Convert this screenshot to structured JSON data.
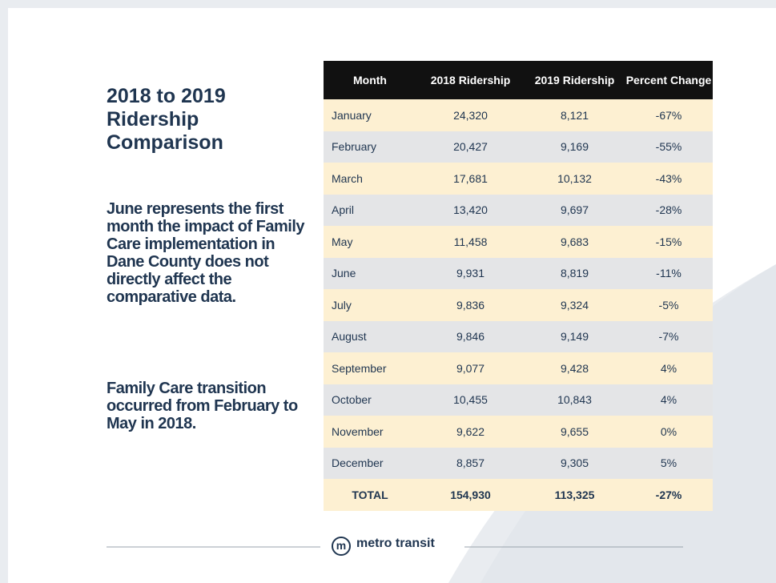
{
  "slide": {
    "title": "2018 to 2019 Ridership Comparison",
    "paragraphs": [
      "June represents the first month the impact of Family Care implementation in Dane County does not directly affect the comparative data.",
      "Family Care transition occurred from February to May in 2018."
    ],
    "table": {
      "header": [
        "Month",
        "2018 Ridership",
        "2019 Ridership",
        "Percent Change"
      ],
      "rows": [
        [
          "January",
          "24,320",
          "8,121",
          "-67%"
        ],
        [
          "February",
          "20,427",
          "9,169",
          "-55%"
        ],
        [
          "March",
          "17,681",
          "10,132",
          "-43%"
        ],
        [
          "April",
          "13,420",
          "9,697",
          "-28%"
        ],
        [
          "May",
          "11,458",
          "9,683",
          "-15%"
        ],
        [
          "June",
          "9,931",
          "8,819",
          "-11%"
        ],
        [
          "July",
          "9,836",
          "9,324",
          "-5%"
        ],
        [
          "August",
          "9,846",
          "9,149",
          "-7%"
        ],
        [
          "September",
          "9,077",
          "9,428",
          "4%"
        ],
        [
          "October",
          "10,455",
          "10,843",
          "4%"
        ],
        [
          "November",
          "9,622",
          "9,655",
          "0%"
        ],
        [
          "December",
          "8,857",
          "9,305",
          "5%"
        ]
      ],
      "total": [
        "TOTAL",
        "154,930",
        "113,325",
        "-27%"
      ]
    },
    "footer": {
      "logo_letter": "m",
      "brand": "metro transit"
    }
  }
}
